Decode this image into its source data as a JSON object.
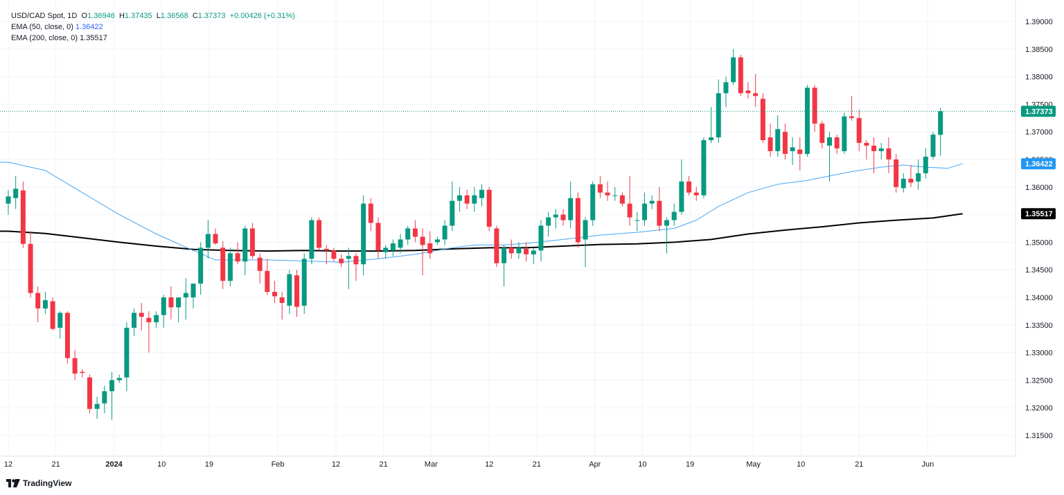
{
  "legend": {
    "symbol": "USD/CAD Spot, 1D",
    "open_label": "O",
    "open": "1.36946",
    "high_label": "H",
    "high": "1.37435",
    "low_label": "L",
    "low": "1.36568",
    "close_label": "C",
    "close": "1.37373",
    "change": "+0.00426 (+0.31%)",
    "ema50_label": "EMA (50, close, 0)",
    "ema50_value": "1.36422",
    "ema200_label": "EMA (200, close, 0)",
    "ema200_value": "1.35517"
  },
  "brand": {
    "name": "TradingView",
    "icon": "tradingview-logo-icon"
  },
  "colors": {
    "up": "#089981",
    "down": "#f23645",
    "ema50": "#42a5f5",
    "ema200": "#000000",
    "grid": "#f0f3fa",
    "text": "#131722"
  },
  "chart_data": {
    "type": "candlestick",
    "ylim": [
      1.3115,
      1.3925
    ],
    "y_ticks": [
      "1.39000",
      "1.38500",
      "1.38000",
      "1.37500",
      "1.37000",
      "1.36500",
      "1.36000",
      "1.35500",
      "1.35000",
      "1.34500",
      "1.34000",
      "1.33500",
      "1.33000",
      "1.32500",
      "1.32000",
      "1.31500"
    ],
    "x_ticks": [
      {
        "label": "12",
        "date": "2023-12-12"
      },
      {
        "label": "21",
        "date": "2023-12-21"
      },
      {
        "label": "2024",
        "date": "2024-01-01",
        "bold": true
      },
      {
        "label": "10",
        "date": "2024-01-10"
      },
      {
        "label": "19",
        "date": "2024-01-19"
      },
      {
        "label": "Feb",
        "date": "2024-02-01"
      },
      {
        "label": "12",
        "date": "2024-02-12"
      },
      {
        "label": "21",
        "date": "2024-02-21"
      },
      {
        "label": "Mar",
        "date": "2024-03-01"
      },
      {
        "label": "12",
        "date": "2024-03-12"
      },
      {
        "label": "21",
        "date": "2024-03-21"
      },
      {
        "label": "Apr",
        "date": "2024-04-01"
      },
      {
        "label": "10",
        "date": "2024-04-10"
      },
      {
        "label": "19",
        "date": "2024-04-19"
      },
      {
        "label": "May",
        "date": "2024-05-01"
      },
      {
        "label": "10",
        "date": "2024-05-10"
      },
      {
        "label": "21",
        "date": "2024-05-21"
      },
      {
        "label": "Jun",
        "date": "2024-06-03"
      }
    ],
    "last_price": "1.37373",
    "ema50_last": "1.36422",
    "ema200_last": "1.35517",
    "candles": [
      {
        "o": 1.357,
        "h": 1.3595,
        "l": 1.355,
        "c": 1.3583
      },
      {
        "o": 1.358,
        "h": 1.362,
        "l": 1.356,
        "c": 1.3597
      },
      {
        "o": 1.3594,
        "h": 1.361,
        "l": 1.349,
        "c": 1.3497
      },
      {
        "o": 1.3497,
        "h": 1.352,
        "l": 1.34,
        "c": 1.3408
      },
      {
        "o": 1.3408,
        "h": 1.342,
        "l": 1.3355,
        "c": 1.338
      },
      {
        "o": 1.338,
        "h": 1.341,
        "l": 1.337,
        "c": 1.3395
      },
      {
        "o": 1.3393,
        "h": 1.34,
        "l": 1.334,
        "c": 1.3343
      },
      {
        "o": 1.3345,
        "h": 1.3375,
        "l": 1.3325,
        "c": 1.3372
      },
      {
        "o": 1.3372,
        "h": 1.3375,
        "l": 1.328,
        "c": 1.329
      },
      {
        "o": 1.329,
        "h": 1.3305,
        "l": 1.325,
        "c": 1.3262
      },
      {
        "o": 1.3265,
        "h": 1.327,
        "l": 1.3255,
        "c": 1.3263
      },
      {
        "o": 1.3255,
        "h": 1.326,
        "l": 1.319,
        "c": 1.3198
      },
      {
        "o": 1.3198,
        "h": 1.322,
        "l": 1.318,
        "c": 1.3207
      },
      {
        "o": 1.3208,
        "h": 1.324,
        "l": 1.319,
        "c": 1.323
      },
      {
        "o": 1.323,
        "h": 1.3265,
        "l": 1.3178,
        "c": 1.325
      },
      {
        "o": 1.325,
        "h": 1.326,
        "l": 1.3245,
        "c": 1.3254
      },
      {
        "o": 1.3255,
        "h": 1.3355,
        "l": 1.323,
        "c": 1.3345
      },
      {
        "o": 1.3345,
        "h": 1.338,
        "l": 1.333,
        "c": 1.3372
      },
      {
        "o": 1.3372,
        "h": 1.339,
        "l": 1.334,
        "c": 1.3365
      },
      {
        "o": 1.3363,
        "h": 1.3375,
        "l": 1.33,
        "c": 1.3355
      },
      {
        "o": 1.3355,
        "h": 1.3375,
        "l": 1.3345,
        "c": 1.3368
      },
      {
        "o": 1.3368,
        "h": 1.3405,
        "l": 1.3345,
        "c": 1.34
      },
      {
        "o": 1.34,
        "h": 1.342,
        "l": 1.336,
        "c": 1.3382
      },
      {
        "o": 1.3382,
        "h": 1.34,
        "l": 1.3355,
        "c": 1.34
      },
      {
        "o": 1.34,
        "h": 1.3435,
        "l": 1.336,
        "c": 1.3408
      },
      {
        "o": 1.34,
        "h": 1.342,
        "l": 1.338,
        "c": 1.3425
      },
      {
        "o": 1.3425,
        "h": 1.35,
        "l": 1.3405,
        "c": 1.349
      },
      {
        "o": 1.349,
        "h": 1.354,
        "l": 1.347,
        "c": 1.3515
      },
      {
        "o": 1.3515,
        "h": 1.3525,
        "l": 1.3495,
        "c": 1.3498
      },
      {
        "o": 1.349,
        "h": 1.3502,
        "l": 1.3415,
        "c": 1.343
      },
      {
        "o": 1.343,
        "h": 1.349,
        "l": 1.342,
        "c": 1.348
      },
      {
        "o": 1.348,
        "h": 1.35,
        "l": 1.346,
        "c": 1.3465
      },
      {
        "o": 1.3465,
        "h": 1.353,
        "l": 1.344,
        "c": 1.3525
      },
      {
        "o": 1.3525,
        "h": 1.3535,
        "l": 1.347,
        "c": 1.3475
      },
      {
        "o": 1.3472,
        "h": 1.348,
        "l": 1.3425,
        "c": 1.3448
      },
      {
        "o": 1.3448,
        "h": 1.347,
        "l": 1.3405,
        "c": 1.341
      },
      {
        "o": 1.341,
        "h": 1.343,
        "l": 1.339,
        "c": 1.3402
      },
      {
        "o": 1.34,
        "h": 1.341,
        "l": 1.336,
        "c": 1.339
      },
      {
        "o": 1.3385,
        "h": 1.345,
        "l": 1.337,
        "c": 1.3442
      },
      {
        "o": 1.344,
        "h": 1.345,
        "l": 1.3365,
        "c": 1.3383
      },
      {
        "o": 1.3385,
        "h": 1.348,
        "l": 1.337,
        "c": 1.347
      },
      {
        "o": 1.347,
        "h": 1.3545,
        "l": 1.346,
        "c": 1.354
      },
      {
        "o": 1.354,
        "h": 1.3545,
        "l": 1.3485,
        "c": 1.349
      },
      {
        "o": 1.3488,
        "h": 1.3495,
        "l": 1.346,
        "c": 1.3485
      },
      {
        "o": 1.3485,
        "h": 1.349,
        "l": 1.3465,
        "c": 1.347
      },
      {
        "o": 1.347,
        "h": 1.3478,
        "l": 1.3455,
        "c": 1.3462
      },
      {
        "o": 1.347,
        "h": 1.349,
        "l": 1.3415,
        "c": 1.3475
      },
      {
        "o": 1.3475,
        "h": 1.348,
        "l": 1.343,
        "c": 1.346
      },
      {
        "o": 1.346,
        "h": 1.3585,
        "l": 1.344,
        "c": 1.357
      },
      {
        "o": 1.357,
        "h": 1.358,
        "l": 1.352,
        "c": 1.3535
      },
      {
        "o": 1.3535,
        "h": 1.3545,
        "l": 1.347,
        "c": 1.3485
      },
      {
        "o": 1.3482,
        "h": 1.3495,
        "l": 1.347,
        "c": 1.349
      },
      {
        "o": 1.3485,
        "h": 1.3505,
        "l": 1.3475,
        "c": 1.3498
      },
      {
        "o": 1.349,
        "h": 1.3515,
        "l": 1.348,
        "c": 1.3505
      },
      {
        "o": 1.3505,
        "h": 1.353,
        "l": 1.3495,
        "c": 1.3525
      },
      {
        "o": 1.3525,
        "h": 1.354,
        "l": 1.35,
        "c": 1.351
      },
      {
        "o": 1.351,
        "h": 1.3525,
        "l": 1.344,
        "c": 1.3495
      },
      {
        "o": 1.3498,
        "h": 1.352,
        "l": 1.347,
        "c": 1.348
      },
      {
        "o": 1.35,
        "h": 1.351,
        "l": 1.3495,
        "c": 1.3505
      },
      {
        "o": 1.3505,
        "h": 1.354,
        "l": 1.3495,
        "c": 1.353
      },
      {
        "o": 1.353,
        "h": 1.361,
        "l": 1.352,
        "c": 1.3575
      },
      {
        "o": 1.3575,
        "h": 1.36,
        "l": 1.3555,
        "c": 1.3585
      },
      {
        "o": 1.3585,
        "h": 1.3595,
        "l": 1.356,
        "c": 1.357
      },
      {
        "o": 1.357,
        "h": 1.36,
        "l": 1.3555,
        "c": 1.3585
      },
      {
        "o": 1.358,
        "h": 1.3605,
        "l": 1.3565,
        "c": 1.3595
      },
      {
        "o": 1.3595,
        "h": 1.36,
        "l": 1.352,
        "c": 1.3528
      },
      {
        "o": 1.3525,
        "h": 1.353,
        "l": 1.3455,
        "c": 1.3462
      },
      {
        "o": 1.3462,
        "h": 1.3495,
        "l": 1.342,
        "c": 1.349
      },
      {
        "o": 1.349,
        "h": 1.3505,
        "l": 1.347,
        "c": 1.348
      },
      {
        "o": 1.348,
        "h": 1.35,
        "l": 1.347,
        "c": 1.349
      },
      {
        "o": 1.3488,
        "h": 1.35,
        "l": 1.3465,
        "c": 1.3478
      },
      {
        "o": 1.3478,
        "h": 1.349,
        "l": 1.346,
        "c": 1.3485
      },
      {
        "o": 1.3485,
        "h": 1.354,
        "l": 1.3465,
        "c": 1.353
      },
      {
        "o": 1.353,
        "h": 1.3555,
        "l": 1.351,
        "c": 1.3545
      },
      {
        "o": 1.3545,
        "h": 1.356,
        "l": 1.3525,
        "c": 1.355
      },
      {
        "o": 1.355,
        "h": 1.356,
        "l": 1.353,
        "c": 1.354
      },
      {
        "o": 1.354,
        "h": 1.361,
        "l": 1.3525,
        "c": 1.358
      },
      {
        "o": 1.358,
        "h": 1.359,
        "l": 1.349,
        "c": 1.35
      },
      {
        "o": 1.3505,
        "h": 1.3545,
        "l": 1.3455,
        "c": 1.354
      },
      {
        "o": 1.354,
        "h": 1.361,
        "l": 1.353,
        "c": 1.3605
      },
      {
        "o": 1.3605,
        "h": 1.362,
        "l": 1.358,
        "c": 1.359
      },
      {
        "o": 1.359,
        "h": 1.361,
        "l": 1.3575,
        "c": 1.3585
      },
      {
        "o": 1.3585,
        "h": 1.36,
        "l": 1.3575,
        "c": 1.3585
      },
      {
        "o": 1.3585,
        "h": 1.359,
        "l": 1.3565,
        "c": 1.357
      },
      {
        "o": 1.357,
        "h": 1.362,
        "l": 1.353,
        "c": 1.3545
      },
      {
        "o": 1.354,
        "h": 1.3555,
        "l": 1.352,
        "c": 1.354
      },
      {
        "o": 1.354,
        "h": 1.359,
        "l": 1.353,
        "c": 1.357
      },
      {
        "o": 1.357,
        "h": 1.3585,
        "l": 1.356,
        "c": 1.3575
      },
      {
        "o": 1.3575,
        "h": 1.36,
        "l": 1.352,
        "c": 1.353
      },
      {
        "o": 1.353,
        "h": 1.3545,
        "l": 1.348,
        "c": 1.354
      },
      {
        "o": 1.354,
        "h": 1.357,
        "l": 1.353,
        "c": 1.3555
      },
      {
        "o": 1.3555,
        "h": 1.365,
        "l": 1.355,
        "c": 1.361
      },
      {
        "o": 1.361,
        "h": 1.362,
        "l": 1.3585,
        "c": 1.359
      },
      {
        "o": 1.359,
        "h": 1.36,
        "l": 1.3575,
        "c": 1.3585
      },
      {
        "o": 1.3585,
        "h": 1.369,
        "l": 1.358,
        "c": 1.3685
      },
      {
        "o": 1.3685,
        "h": 1.3745,
        "l": 1.368,
        "c": 1.369
      },
      {
        "o": 1.369,
        "h": 1.3795,
        "l": 1.368,
        "c": 1.377
      },
      {
        "o": 1.377,
        "h": 1.38,
        "l": 1.3745,
        "c": 1.379
      },
      {
        "o": 1.379,
        "h": 1.385,
        "l": 1.3785,
        "c": 1.3835
      },
      {
        "o": 1.3835,
        "h": 1.384,
        "l": 1.3765,
        "c": 1.377
      },
      {
        "o": 1.3775,
        "h": 1.379,
        "l": 1.376,
        "c": 1.377
      },
      {
        "o": 1.377,
        "h": 1.3805,
        "l": 1.3745,
        "c": 1.3765
      },
      {
        "o": 1.376,
        "h": 1.377,
        "l": 1.368,
        "c": 1.3685
      },
      {
        "o": 1.369,
        "h": 1.3715,
        "l": 1.3655,
        "c": 1.3665
      },
      {
        "o": 1.3665,
        "h": 1.373,
        "l": 1.3655,
        "c": 1.3705
      },
      {
        "o": 1.37,
        "h": 1.3715,
        "l": 1.365,
        "c": 1.366
      },
      {
        "o": 1.3665,
        "h": 1.369,
        "l": 1.364,
        "c": 1.3672
      },
      {
        "o": 1.3668,
        "h": 1.369,
        "l": 1.363,
        "c": 1.366
      },
      {
        "o": 1.366,
        "h": 1.3785,
        "l": 1.3655,
        "c": 1.378
      },
      {
        "o": 1.378,
        "h": 1.3785,
        "l": 1.37,
        "c": 1.3715
      },
      {
        "o": 1.3715,
        "h": 1.372,
        "l": 1.367,
        "c": 1.368
      },
      {
        "o": 1.3675,
        "h": 1.37,
        "l": 1.361,
        "c": 1.369
      },
      {
        "o": 1.369,
        "h": 1.3695,
        "l": 1.366,
        "c": 1.367
      },
      {
        "o": 1.3665,
        "h": 1.3735,
        "l": 1.366,
        "c": 1.3728
      },
      {
        "o": 1.3728,
        "h": 1.3765,
        "l": 1.372,
        "c": 1.3725
      },
      {
        "o": 1.3725,
        "h": 1.374,
        "l": 1.3665,
        "c": 1.368
      },
      {
        "o": 1.368,
        "h": 1.3685,
        "l": 1.365,
        "c": 1.3675
      },
      {
        "o": 1.3675,
        "h": 1.369,
        "l": 1.3625,
        "c": 1.3665
      },
      {
        "o": 1.3665,
        "h": 1.368,
        "l": 1.365,
        "c": 1.367
      },
      {
        "o": 1.367,
        "h": 1.369,
        "l": 1.3625,
        "c": 1.365
      },
      {
        "o": 1.365,
        "h": 1.366,
        "l": 1.359,
        "c": 1.36
      },
      {
        "o": 1.3598,
        "h": 1.3625,
        "l": 1.359,
        "c": 1.3615
      },
      {
        "o": 1.3615,
        "h": 1.364,
        "l": 1.36,
        "c": 1.3608
      },
      {
        "o": 1.361,
        "h": 1.365,
        "l": 1.3595,
        "c": 1.3625
      },
      {
        "o": 1.3625,
        "h": 1.367,
        "l": 1.3615,
        "c": 1.3655
      },
      {
        "o": 1.3655,
        "h": 1.37,
        "l": 1.365,
        "c": 1.3695
      },
      {
        "o": 1.36946,
        "h": 1.37435,
        "l": 1.36568,
        "c": 1.37373
      }
    ],
    "ema50": [
      {
        "i": 0,
        "v": 1.3645
      },
      {
        "i": 5,
        "v": 1.363
      },
      {
        "i": 10,
        "v": 1.359
      },
      {
        "i": 15,
        "v": 1.355
      },
      {
        "i": 20,
        "v": 1.3515
      },
      {
        "i": 25,
        "v": 1.3485
      },
      {
        "i": 28,
        "v": 1.3468
      },
      {
        "i": 31,
        "v": 1.3468
      },
      {
        "i": 35,
        "v": 1.3468
      },
      {
        "i": 40,
        "v": 1.3466
      },
      {
        "i": 45,
        "v": 1.3464
      },
      {
        "i": 50,
        "v": 1.347
      },
      {
        "i": 55,
        "v": 1.3478
      },
      {
        "i": 60,
        "v": 1.349
      },
      {
        "i": 63,
        "v": 1.3495
      },
      {
        "i": 67,
        "v": 1.3495
      },
      {
        "i": 70,
        "v": 1.3498
      },
      {
        "i": 75,
        "v": 1.3505
      },
      {
        "i": 80,
        "v": 1.3513
      },
      {
        "i": 85,
        "v": 1.3518
      },
      {
        "i": 90,
        "v": 1.3525
      },
      {
        "i": 93,
        "v": 1.354
      },
      {
        "i": 96,
        "v": 1.3565
      },
      {
        "i": 100,
        "v": 1.359
      },
      {
        "i": 104,
        "v": 1.3605
      },
      {
        "i": 108,
        "v": 1.3612
      },
      {
        "i": 111,
        "v": 1.362
      },
      {
        "i": 114,
        "v": 1.3628
      },
      {
        "i": 118,
        "v": 1.3636
      },
      {
        "i": 121,
        "v": 1.364
      },
      {
        "i": 124,
        "v": 1.3636
      },
      {
        "i": 127,
        "v": 1.3634
      },
      {
        "i": 129,
        "v": 1.36422
      }
    ],
    "ema200": [
      {
        "i": 0,
        "v": 1.352
      },
      {
        "i": 5,
        "v": 1.3516
      },
      {
        "i": 10,
        "v": 1.3508
      },
      {
        "i": 15,
        "v": 1.35
      },
      {
        "i": 20,
        "v": 1.3493
      },
      {
        "i": 25,
        "v": 1.3487
      },
      {
        "i": 30,
        "v": 1.3485
      },
      {
        "i": 35,
        "v": 1.3484
      },
      {
        "i": 40,
        "v": 1.3485
      },
      {
        "i": 45,
        "v": 1.3484
      },
      {
        "i": 50,
        "v": 1.3484
      },
      {
        "i": 55,
        "v": 1.3485
      },
      {
        "i": 60,
        "v": 1.3488
      },
      {
        "i": 65,
        "v": 1.349
      },
      {
        "i": 70,
        "v": 1.349
      },
      {
        "i": 75,
        "v": 1.3493
      },
      {
        "i": 80,
        "v": 1.3496
      },
      {
        "i": 85,
        "v": 1.3497
      },
      {
        "i": 90,
        "v": 1.35
      },
      {
        "i": 95,
        "v": 1.3505
      },
      {
        "i": 100,
        "v": 1.3515
      },
      {
        "i": 105,
        "v": 1.3522
      },
      {
        "i": 110,
        "v": 1.3528
      },
      {
        "i": 115,
        "v": 1.3535
      },
      {
        "i": 120,
        "v": 1.354
      },
      {
        "i": 125,
        "v": 1.3544
      },
      {
        "i": 129,
        "v": 1.35517
      }
    ]
  }
}
